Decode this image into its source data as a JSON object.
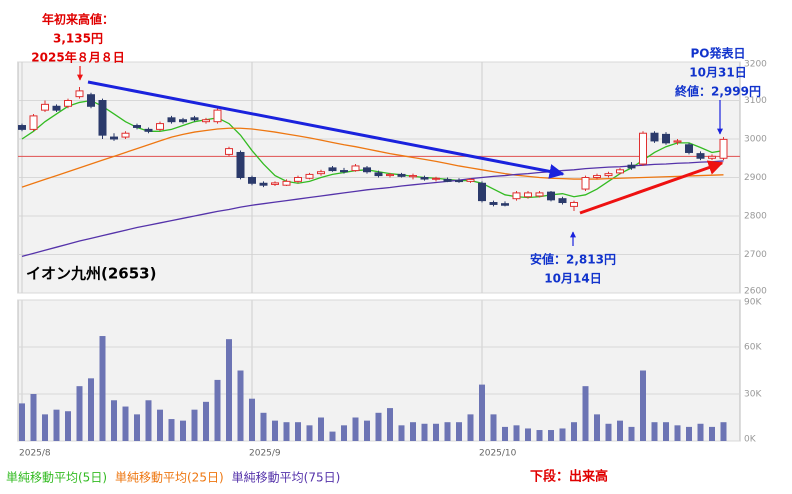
{
  "chart_data": [
    {
      "type": "candlestick",
      "title": "イオン九州(2653)",
      "categories": [
        "2025/8",
        null,
        null,
        null,
        null,
        null,
        null,
        null,
        null,
        null,
        null,
        null,
        null,
        null,
        null,
        null,
        null,
        null,
        null,
        null,
        "2025/9",
        null,
        null,
        null,
        null,
        null,
        null,
        null,
        null,
        null,
        null,
        null,
        null,
        null,
        null,
        null,
        null,
        null,
        null,
        null,
        "2025/10",
        null,
        null,
        null,
        null,
        null,
        null,
        null,
        null,
        null,
        null,
        null,
        null,
        null,
        null,
        null,
        null,
        null,
        null,
        null,
        null,
        null
      ],
      "open": [
        3035,
        3025,
        3075,
        3085,
        3085,
        3110,
        3115,
        3100,
        3005,
        3005,
        3035,
        3025,
        3025,
        3055,
        3050,
        3055,
        3045,
        3045,
        2960,
        2965,
        2900,
        2885,
        2882,
        2880,
        2890,
        2898,
        2910,
        2925,
        2918,
        2918,
        2925,
        2912,
        2905,
        2908,
        2902,
        2900,
        2896,
        2895,
        2892,
        2890,
        2885,
        2835,
        2832,
        2845,
        2850,
        2852,
        2862,
        2845,
        2825,
        2870,
        2900,
        2905,
        2912,
        2932,
        2935,
        3015,
        3012,
        2992,
        2985,
        2962,
        2950,
        2950
      ],
      "high": [
        3040,
        3065,
        3100,
        3090,
        3105,
        3135,
        3120,
        3105,
        3015,
        3020,
        3040,
        3030,
        3045,
        3060,
        3055,
        3060,
        3055,
        3080,
        2980,
        2970,
        2905,
        2890,
        2890,
        2895,
        2905,
        2912,
        2920,
        2930,
        2925,
        2935,
        2930,
        2918,
        2912,
        2912,
        2910,
        2905,
        2902,
        2900,
        2898,
        2898,
        2890,
        2840,
        2838,
        2865,
        2865,
        2865,
        2865,
        2850,
        2840,
        2905,
        2910,
        2915,
        2925,
        2940,
        3020,
        3020,
        3018,
        3000,
        2990,
        2968,
        2960,
        3005
      ],
      "low": [
        3020,
        3020,
        3070,
        3070,
        3080,
        3105,
        3080,
        3000,
        2995,
        3000,
        3025,
        3015,
        3020,
        3040,
        3040,
        3045,
        3040,
        3040,
        2955,
        2895,
        2880,
        2875,
        2878,
        2878,
        2885,
        2895,
        2905,
        2915,
        2910,
        2915,
        2910,
        2900,
        2900,
        2900,
        2895,
        2892,
        2890,
        2888,
        2886,
        2886,
        2835,
        2825,
        2825,
        2840,
        2845,
        2848,
        2838,
        2830,
        2813,
        2865,
        2895,
        2900,
        2908,
        2920,
        2930,
        2990,
        2985,
        2985,
        2960,
        2945,
        2945,
        2945
      ],
      "close": [
        3025,
        3060,
        3090,
        3075,
        3100,
        3125,
        3085,
        3010,
        3000,
        3015,
        3030,
        3020,
        3040,
        3045,
        3045,
        3050,
        3050,
        3075,
        2975,
        2900,
        2885,
        2880,
        2886,
        2890,
        2900,
        2908,
        2915,
        2918,
        2915,
        2930,
        2915,
        2905,
        2908,
        2903,
        2905,
        2896,
        2898,
        2890,
        2890,
        2895,
        2840,
        2830,
        2828,
        2860,
        2860,
        2860,
        2842,
        2835,
        2835,
        2900,
        2905,
        2910,
        2920,
        2925,
        3015,
        2995,
        2990,
        2995,
        2965,
        2950,
        2955,
        2999
      ],
      "up_color": "#e03030",
      "down_color": "#2b3a6b",
      "series": [
        {
          "name": "単純移動平均(5日)",
          "color": "#33bb22",
          "values": [
            3000,
            3020,
            3045,
            3065,
            3085,
            3095,
            3100,
            3085,
            3065,
            3045,
            3030,
            3020,
            3020,
            3025,
            3035,
            3045,
            3050,
            3055,
            3040,
            3010,
            2970,
            2935,
            2905,
            2890,
            2885,
            2890,
            2900,
            2908,
            2913,
            2918,
            2920,
            2915,
            2910,
            2907,
            2903,
            2900,
            2898,
            2895,
            2892,
            2892,
            2885,
            2870,
            2855,
            2850,
            2848,
            2850,
            2855,
            2858,
            2850,
            2855,
            2870,
            2890,
            2910,
            2925,
            2945,
            2965,
            2980,
            2990,
            2990,
            2978,
            2965,
            2970
          ]
        },
        {
          "name": "単純移動平均(25日)",
          "color": "#ee7711",
          "values": [
            2875,
            2885,
            2895,
            2905,
            2915,
            2925,
            2935,
            2945,
            2955,
            2965,
            2975,
            2985,
            2995,
            3005,
            3012,
            3018,
            3022,
            3026,
            3028,
            3028,
            3026,
            3022,
            3018,
            3013,
            3008,
            3003,
            2997,
            2991,
            2985,
            2980,
            2974,
            2968,
            2962,
            2957,
            2952,
            2947,
            2942,
            2936,
            2930,
            2925,
            2920,
            2915,
            2910,
            2906,
            2903,
            2900,
            2898,
            2897,
            2896,
            2896,
            2896,
            2897,
            2898,
            2899,
            2900,
            2901,
            2902,
            2903,
            2904,
            2905,
            2906,
            2907
          ]
        },
        {
          "name": "単純移動平均(75日)",
          "color": "#5533aa",
          "values": [
            2695,
            2703,
            2711,
            2719,
            2727,
            2735,
            2742,
            2749,
            2756,
            2763,
            2770,
            2776,
            2782,
            2788,
            2794,
            2800,
            2806,
            2812,
            2817,
            2823,
            2828,
            2832,
            2836,
            2840,
            2844,
            2848,
            2852,
            2856,
            2860,
            2864,
            2868,
            2871,
            2874,
            2878,
            2881,
            2884,
            2887,
            2890,
            2893,
            2897,
            2900,
            2903,
            2905,
            2908,
            2910,
            2913,
            2915,
            2918,
            2920,
            2923,
            2925,
            2927,
            2928,
            2930,
            2932,
            2934,
            2935,
            2937,
            2938,
            2940,
            2941,
            2943
          ]
        }
      ],
      "reference_line": 2955,
      "reference_color": "#e05050",
      "ylim": [
        2600,
        3200
      ],
      "yticks": [
        2600,
        2700,
        2800,
        2900,
        3000,
        3100,
        3200
      ],
      "grid": true,
      "annotations": [
        {
          "lines": [
            "年初来高値：",
            "3,135円",
            "2025年８月８日"
          ],
          "color": "#e00000"
        },
        {
          "lines": [
            "PO発表日",
            "10月31日",
            "終値：2,999円"
          ],
          "color": "#1133cc"
        },
        {
          "lines": [
            "安値：2,813円",
            "10月14日"
          ],
          "color": "#1133cc"
        }
      ]
    },
    {
      "type": "bar",
      "title": "下段：出来高",
      "values": [
        24000,
        30000,
        17000,
        20000,
        19000,
        35000,
        40000,
        67000,
        26000,
        22000,
        17000,
        26000,
        20000,
        14000,
        13000,
        20000,
        25000,
        39000,
        65000,
        45000,
        27000,
        18000,
        13000,
        12000,
        12000,
        10000,
        15000,
        6000,
        10000,
        15000,
        13000,
        18000,
        21000,
        10000,
        12000,
        11000,
        11000,
        12000,
        12000,
        17000,
        36000,
        17000,
        9000,
        10000,
        8000,
        7000,
        7000,
        8000,
        12000,
        35000,
        17000,
        11000,
        13000,
        9000,
        45000,
        12000,
        12000,
        10000,
        9000,
        11000,
        9000,
        12000
      ],
      "color": "#6c74b4",
      "ylim": [
        0,
        90000
      ],
      "yticks": [
        {
          "value": 0,
          "label": "0K"
        },
        {
          "value": 30000,
          "label": "30K"
        },
        {
          "value": 60000,
          "label": "60K"
        },
        {
          "value": 90000,
          "label": "90K"
        }
      ],
      "grid": true
    }
  ]
}
